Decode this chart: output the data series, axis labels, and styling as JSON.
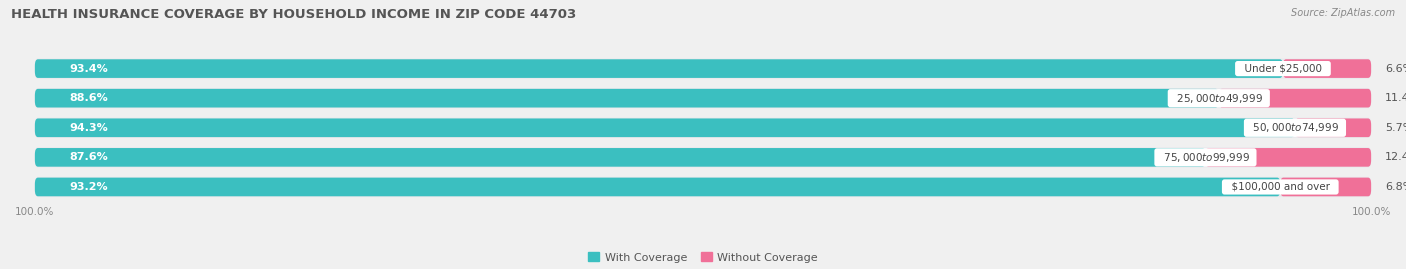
{
  "title": "HEALTH INSURANCE COVERAGE BY HOUSEHOLD INCOME IN ZIP CODE 44703",
  "source": "Source: ZipAtlas.com",
  "categories": [
    "Under $25,000",
    "$25,000 to $49,999",
    "$50,000 to $74,999",
    "$75,000 to $99,999",
    "$100,000 and over"
  ],
  "with_coverage": [
    93.4,
    88.6,
    94.3,
    87.6,
    93.2
  ],
  "without_coverage": [
    6.6,
    11.4,
    5.7,
    12.4,
    6.8
  ],
  "color_with": "#3BBFC0",
  "color_without": "#F07098",
  "background_color": "#f0f0f0",
  "bar_bg_color": "#e8e8ec",
  "bar_height": 0.68,
  "title_fontsize": 9.5,
  "label_fontsize": 8.0,
  "tick_fontsize": 7.5,
  "legend_fontsize": 8.0,
  "xlim_left": 0,
  "xlim_right": 100
}
